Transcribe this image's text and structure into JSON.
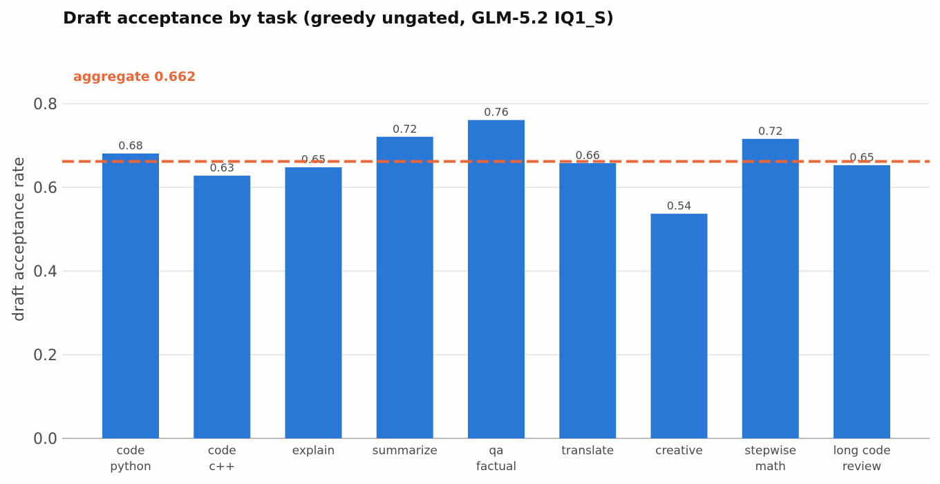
{
  "chart_data": {
    "type": "bar",
    "title": "Draft acceptance by task  (greedy ungated, GLM-5.2 IQ1_S)",
    "ylabel": "draft acceptance rate",
    "xlabel": "",
    "ylim": [
      0,
      0.85
    ],
    "yticks": [
      "0.0",
      "0.2",
      "0.4",
      "0.6",
      "0.8"
    ],
    "ytick_values": [
      0,
      0.2,
      0.4,
      0.6,
      0.8
    ],
    "grid": "horizontal",
    "categories": [
      [
        "code",
        "python"
      ],
      [
        "code",
        "c++"
      ],
      [
        "explain"
      ],
      [
        "summarize"
      ],
      [
        "qa",
        "factual"
      ],
      [
        "translate"
      ],
      [
        "creative"
      ],
      [
        "stepwise",
        "math"
      ],
      [
        "long code",
        "review"
      ]
    ],
    "values": [
      0.681,
      0.628,
      0.648,
      0.721,
      0.761,
      0.658,
      0.537,
      0.716,
      0.653
    ],
    "value_labels": [
      "0.68",
      "0.63",
      "0.65",
      "0.72",
      "0.76",
      "0.66",
      "0.54",
      "0.72",
      "0.65"
    ],
    "reference_line": {
      "value": 0.662,
      "label": "aggregate 0.662",
      "style": "dashed"
    },
    "colors": {
      "bar": "#2a78d6",
      "reference": "#e8683a",
      "grid": "#dddddd",
      "axis": "#aaaaaa"
    }
  }
}
